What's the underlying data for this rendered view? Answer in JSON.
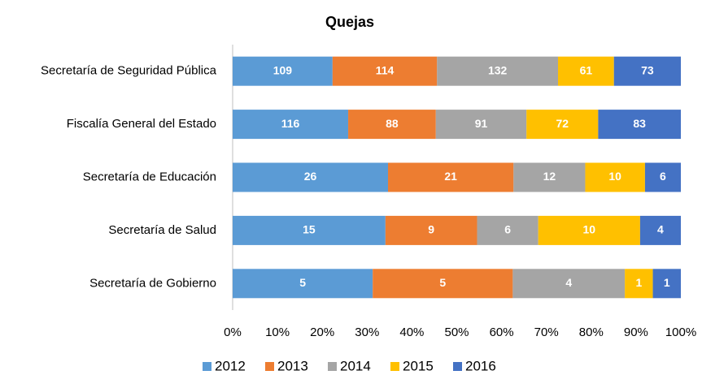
{
  "chart_data": {
    "type": "bar",
    "orientation": "horizontal",
    "stack": "percent",
    "title": "Quejas",
    "categories": [
      "Secretaría de Seguridad Pública",
      "Fiscalía General del Estado",
      "Secretaría de Educación",
      "Secretaría de Salud",
      "Secretaría de Gobierno"
    ],
    "series": [
      {
        "name": "2012",
        "color": "#5b9bd5",
        "values": [
          109,
          116,
          26,
          15,
          5
        ]
      },
      {
        "name": "2013",
        "color": "#ed7d31",
        "values": [
          114,
          88,
          21,
          9,
          5
        ]
      },
      {
        "name": "2014",
        "color": "#a5a5a5",
        "values": [
          132,
          91,
          12,
          6,
          4
        ]
      },
      {
        "name": "2015",
        "color": "#ffc000",
        "values": [
          61,
          72,
          10,
          10,
          1
        ]
      },
      {
        "name": "2016",
        "color": "#4472c4",
        "values": [
          73,
          83,
          6,
          4,
          1
        ]
      }
    ],
    "xlim": [
      0,
      100
    ],
    "xticks": [
      {
        "value": 0,
        "label": "0%"
      },
      {
        "value": 10,
        "label": "10%"
      },
      {
        "value": 20,
        "label": "20%"
      },
      {
        "value": 30,
        "label": "30%"
      },
      {
        "value": 40,
        "label": "40%"
      },
      {
        "value": 50,
        "label": "50%"
      },
      {
        "value": 60,
        "label": "60%"
      },
      {
        "value": 70,
        "label": "70%"
      },
      {
        "value": 80,
        "label": "80%"
      },
      {
        "value": 90,
        "label": "90%"
      },
      {
        "value": 100,
        "label": "100%"
      }
    ],
    "grid": false,
    "legend": "bottom"
  }
}
